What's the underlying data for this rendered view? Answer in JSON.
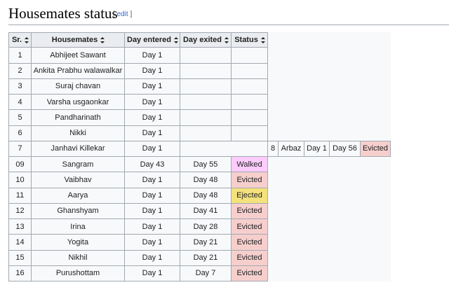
{
  "header": {
    "title": "Housemates status",
    "edit": "edit"
  },
  "table": {
    "columns": [
      "Sr.",
      "Housemates",
      "Day entered",
      "Day exited",
      "Status"
    ],
    "status_colors": {
      "Evicted": "#f6cfcd",
      "Walked": "#fcccfc",
      "Ejected": "#f4e27c"
    },
    "rows": [
      {
        "cells": [
          "1",
          "Abhijeet Sawant",
          "Day 1"
        ]
      },
      {
        "cells": [
          "2",
          "Ankita Prabhu walawalkar",
          "Day 1"
        ]
      },
      {
        "cells": [
          "3",
          "Suraj chavan",
          "Day 1"
        ]
      },
      {
        "cells": [
          "4",
          "Varsha usgaonkar",
          "Day 1"
        ]
      },
      {
        "cells": [
          "5",
          "Pandharinath",
          "Day 1"
        ]
      },
      {
        "cells": [
          "6",
          "Nikki",
          "Day 1"
        ]
      },
      {
        "cells": [
          "7",
          "Janhavi Killekar",
          "Day 1"
        ],
        "extra": [
          "8",
          "Arbaz",
          "Day 1",
          "Day 56",
          "Evicted"
        ]
      },
      {
        "cells": [
          "09",
          "Sangram",
          "Day 43",
          "Day 55",
          "Walked"
        ]
      },
      {
        "cells": [
          "10",
          "Vaibhav",
          "Day 1",
          "Day 48",
          "Evicted"
        ]
      },
      {
        "cells": [
          "11",
          "Aarya",
          "Day 1",
          "Day 48",
          "Ejected"
        ]
      },
      {
        "cells": [
          "12",
          "Ghanshyam",
          "Day 1",
          "Day 41",
          "Evicted"
        ]
      },
      {
        "cells": [
          "13",
          "Irina",
          "Day 1",
          "Day 28",
          "Evicted"
        ]
      },
      {
        "cells": [
          "14",
          "Yogita",
          "Day 1",
          "Day 21",
          "Evicted"
        ]
      },
      {
        "cells": [
          "15",
          "Nikhil",
          "Day 1",
          "Day 21",
          "Evicted"
        ]
      },
      {
        "cells": [
          "16",
          "Purushottam",
          "Day 1",
          "Day 7",
          "Evicted"
        ]
      }
    ]
  }
}
